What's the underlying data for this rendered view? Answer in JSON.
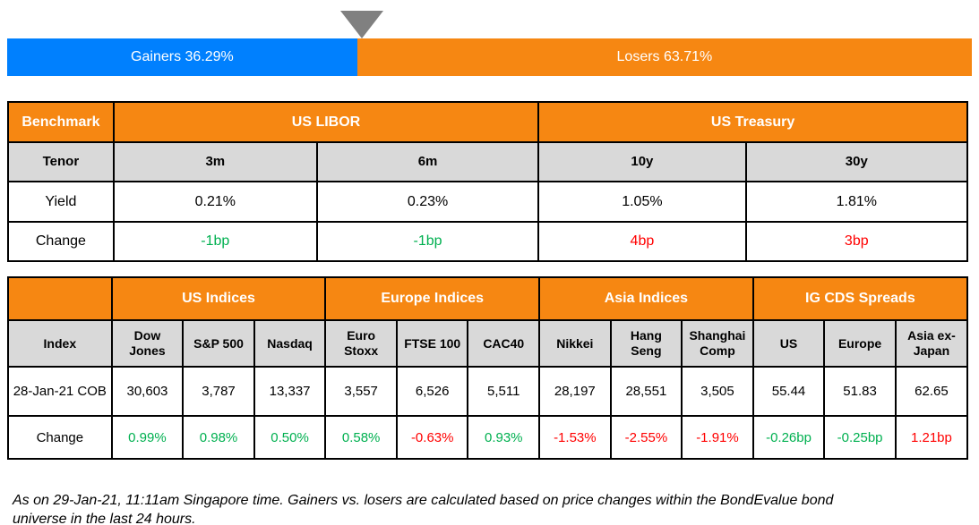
{
  "colors": {
    "gainers_blue": "#0080FE",
    "losers_orange": "#F68712",
    "header_orange": "#F68712",
    "subheader_gray": "#D9D9D9",
    "positive_green": "#00B050",
    "negative_red": "#FF0000",
    "marker_gray": "#808080"
  },
  "chart_data": {
    "type": "bar",
    "title": "Gainers vs. Losers",
    "layout": "horizontal-stacked-100pct",
    "categories": [
      "BondEvalue bond universe price changes (last 24 hours)"
    ],
    "series": [
      {
        "name": "Gainers",
        "values": [
          36.29
        ]
      },
      {
        "name": "Losers",
        "values": [
          63.71
        ]
      }
    ],
    "unit": "%"
  },
  "gauge": {
    "gainers_label": "Gainers 36.29%",
    "losers_label": "Losers 63.71%",
    "gainers_pct": 36.29,
    "losers_pct": 63.71
  },
  "benchmark_table": {
    "corner_label": "Benchmark",
    "groups": [
      "US LIBOR",
      "US Treasury"
    ],
    "tenor_label": "Tenor",
    "tenors": [
      "3m",
      "6m",
      "10y",
      "30y"
    ],
    "yield_label": "Yield",
    "yields": [
      "0.21%",
      "0.23%",
      "1.05%",
      "1.81%"
    ],
    "change_label": "Change",
    "changes": [
      {
        "text": "-1bp",
        "tone": "green"
      },
      {
        "text": "-1bp",
        "tone": "green"
      },
      {
        "text": "4bp",
        "tone": "red"
      },
      {
        "text": "3bp",
        "tone": "red"
      }
    ]
  },
  "indices_table": {
    "corner_label": "",
    "groups": [
      "US Indices",
      "Europe Indices",
      "Asia Indices",
      "IG CDS Spreads"
    ],
    "index_label": "Index",
    "columns": [
      "Dow Jones",
      "S&P 500",
      "Nasdaq",
      "Euro Stoxx",
      "FTSE 100",
      "CAC40",
      "Nikkei",
      "Hang Seng",
      "Shanghai Comp",
      "US",
      "Europe",
      "Asia ex-Japan"
    ],
    "cob_label": "28-Jan-21 COB",
    "cob_values": [
      "30,603",
      "3,787",
      "13,337",
      "3,557",
      "6,526",
      "5,511",
      "28,197",
      "28,551",
      "3,505",
      "55.44",
      "51.83",
      "62.65"
    ],
    "change_label": "Change",
    "changes": [
      {
        "text": "0.99%",
        "tone": "green"
      },
      {
        "text": "0.98%",
        "tone": "green"
      },
      {
        "text": "0.50%",
        "tone": "green"
      },
      {
        "text": "0.58%",
        "tone": "green"
      },
      {
        "text": "-0.63%",
        "tone": "red"
      },
      {
        "text": "0.93%",
        "tone": "green"
      },
      {
        "text": "-1.53%",
        "tone": "red"
      },
      {
        "text": "-2.55%",
        "tone": "red"
      },
      {
        "text": "-1.91%",
        "tone": "red"
      },
      {
        "text": "-0.26bp",
        "tone": "green"
      },
      {
        "text": "-0.25bp",
        "tone": "green"
      },
      {
        "text": "1.21bp",
        "tone": "red"
      }
    ]
  },
  "footnote": "As on 29-Jan-21, 11:11am Singapore time. Gainers vs. losers are calculated based on price changes within the BondEvalue bond universe in the last 24 hours."
}
